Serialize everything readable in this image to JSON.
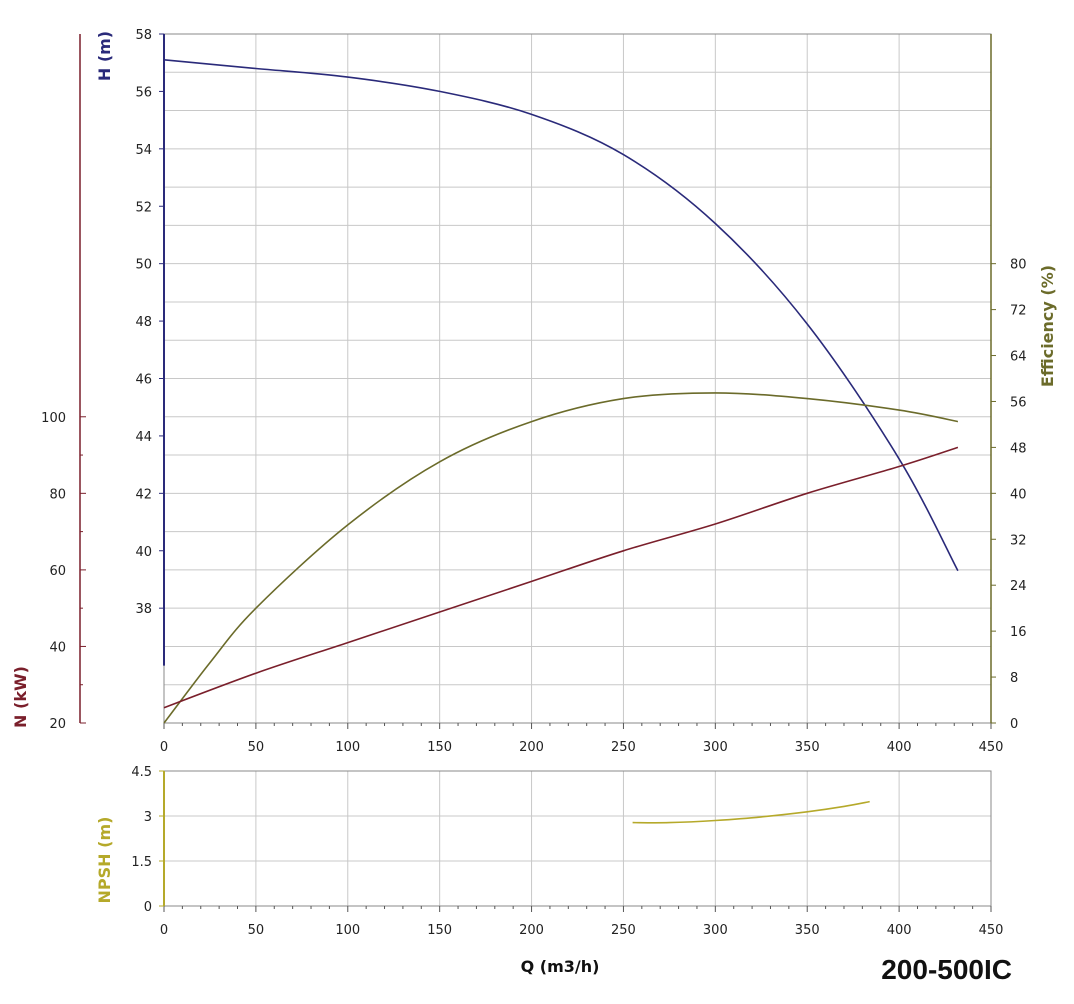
{
  "model_label": "200-500IC",
  "colors": {
    "head": "#2a2a7a",
    "efficiency": "#6b6b2a",
    "power": "#7a1f2b",
    "npsh": "#b5a92a",
    "grid": "#c8c8c8",
    "frame": "#888888"
  },
  "chart_data": [
    {
      "type": "line",
      "x_axis": {
        "label": "",
        "range": [
          0,
          450
        ],
        "ticks": [
          "0",
          "50",
          "100",
          "150",
          "200",
          "250",
          "300",
          "350",
          "400",
          "450"
        ]
      },
      "axes": {
        "head": {
          "label": "H (m)",
          "side": "left",
          "range": [
            34,
            58
          ],
          "ticks": [
            "38",
            "40",
            "42",
            "44",
            "46",
            "48",
            "50",
            "52",
            "54",
            "56",
            "58"
          ]
        },
        "efficiency": {
          "label": "Efficiency (%)",
          "side": "right",
          "range": [
            0,
            120
          ],
          "ticks": [
            "0",
            "8",
            "16",
            "24",
            "32",
            "40",
            "48",
            "56",
            "64",
            "72",
            "80"
          ]
        },
        "power": {
          "label": "N (kW)",
          "side": "far-left",
          "range": [
            20,
            200
          ],
          "ticks": [
            "20",
            "40",
            "60",
            "80",
            "100"
          ]
        }
      },
      "series": [
        {
          "key": "head",
          "axis": "head",
          "x": [
            0,
            50,
            100,
            150,
            200,
            250,
            300,
            350,
            400,
            432
          ],
          "y": [
            57.1,
            56.8,
            56.5,
            56.0,
            55.2,
            53.8,
            51.4,
            47.9,
            43.2,
            39.3
          ]
        },
        {
          "key": "efficiency",
          "axis": "efficiency",
          "x": [
            0,
            25,
            50,
            100,
            150,
            200,
            250,
            300,
            350,
            400,
            432
          ],
          "y": [
            0,
            10.5,
            20,
            34.5,
            45.5,
            52.5,
            56.5,
            57.5,
            56.5,
            54.5,
            52.5
          ]
        },
        {
          "key": "power",
          "axis": "power",
          "x": [
            0,
            50,
            100,
            150,
            200,
            250,
            300,
            350,
            400,
            432
          ],
          "y": [
            24,
            33,
            41,
            49,
            57,
            65,
            72,
            80,
            87,
            92
          ]
        }
      ]
    },
    {
      "type": "line",
      "x_axis": {
        "label": "Q (m3/h)",
        "range": [
          0,
          450
        ],
        "ticks": [
          "0",
          "50",
          "100",
          "150",
          "200",
          "250",
          "300",
          "350",
          "400",
          "450"
        ]
      },
      "y_axis": {
        "label": "NPSH (m)",
        "range": [
          0,
          4.5
        ],
        "ticks": [
          "0",
          "1.5",
          "3",
          "4.5"
        ]
      },
      "series": [
        {
          "key": "npsh",
          "x": [
            255,
            275,
            300,
            325,
            350,
            370,
            384
          ],
          "y": [
            2.78,
            2.78,
            2.85,
            2.97,
            3.14,
            3.32,
            3.48
          ]
        }
      ]
    }
  ]
}
